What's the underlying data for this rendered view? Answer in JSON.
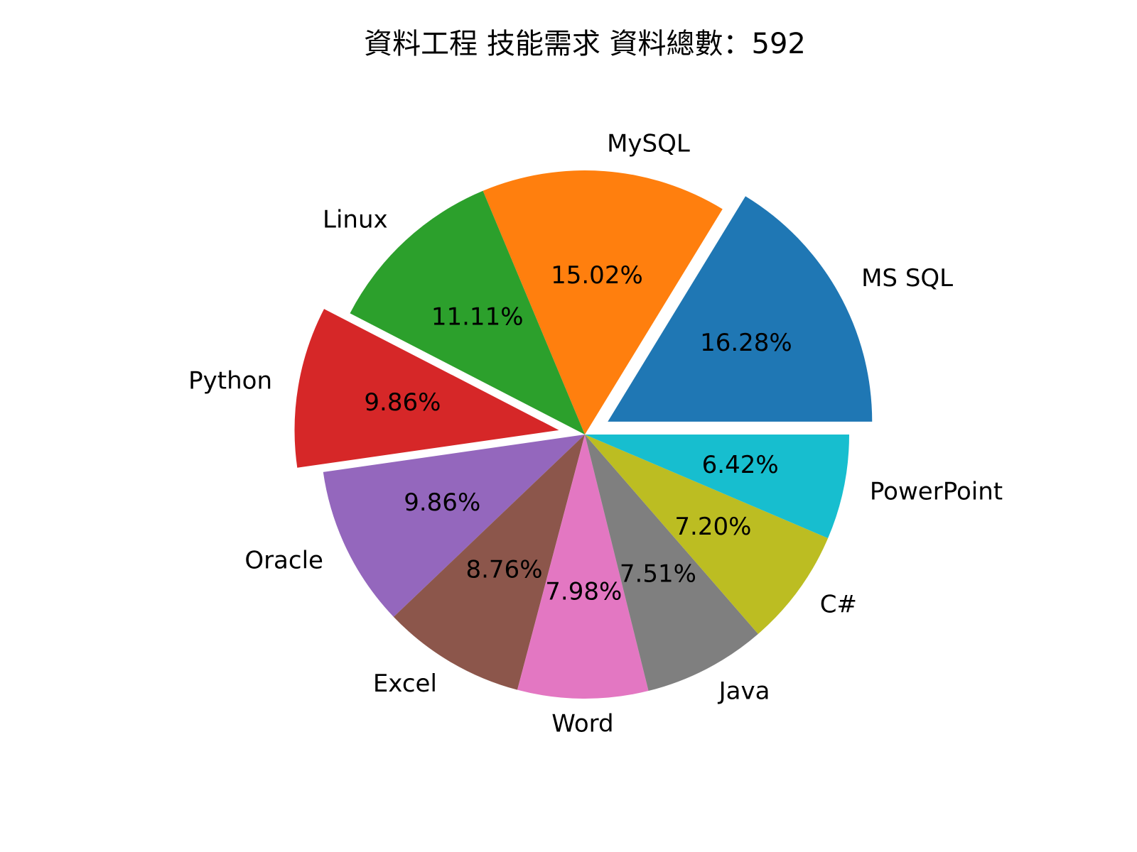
{
  "chart_data": {
    "type": "pie",
    "title": "資料工程 技能需求 資料總數：592",
    "slices": [
      {
        "label": "MS SQL",
        "pct_text": "16.28%",
        "value": 16.28,
        "color": "#1f77b4",
        "exploded": true
      },
      {
        "label": "MySQL",
        "pct_text": "15.02%",
        "value": 15.02,
        "color": "#ff7f0e",
        "exploded": false
      },
      {
        "label": "Linux",
        "pct_text": "11.11%",
        "value": 11.11,
        "color": "#2ca02c",
        "exploded": false
      },
      {
        "label": "Python",
        "pct_text": "9.86%",
        "value": 9.86,
        "color": "#d62728",
        "exploded": true
      },
      {
        "label": "Oracle",
        "pct_text": "9.86%",
        "value": 9.86,
        "color": "#9467bd",
        "exploded": false
      },
      {
        "label": "Excel",
        "pct_text": "8.76%",
        "value": 8.76,
        "color": "#8c564b",
        "exploded": false
      },
      {
        "label": "Word",
        "pct_text": "7.98%",
        "value": 7.98,
        "color": "#e377c2",
        "exploded": false
      },
      {
        "label": "Java",
        "pct_text": "7.51%",
        "value": 7.51,
        "color": "#7f7f7f",
        "exploded": false
      },
      {
        "label": "C#",
        "pct_text": "7.20%",
        "value": 7.2,
        "color": "#bcbd22",
        "exploded": false
      },
      {
        "label": "PowerPoint",
        "pct_text": "6.42%",
        "value": 6.42,
        "color": "#17becf",
        "exploded": false
      }
    ]
  }
}
